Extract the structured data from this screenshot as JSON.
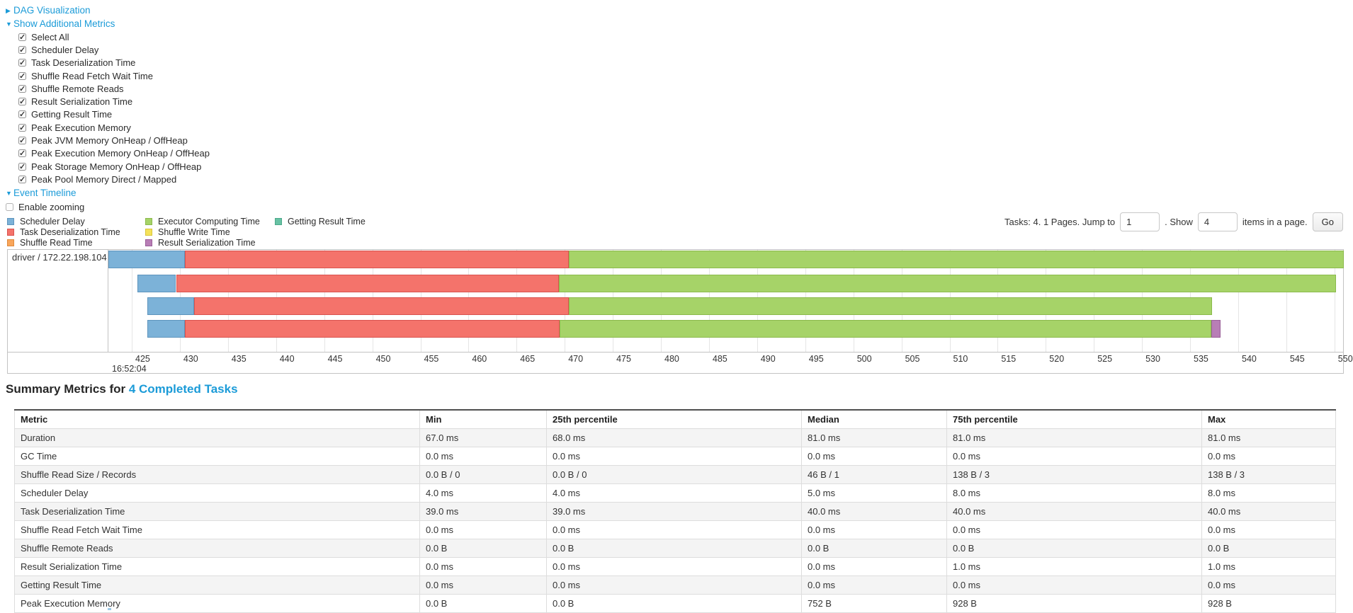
{
  "colors": {
    "link": "#1b9bd8",
    "scheduler_delay": {
      "fill": "#7CB2D8",
      "border": "#5E94BD"
    },
    "task_deserialization": {
      "fill": "#F4736B",
      "border": "#D9534F"
    },
    "shuffle_read": {
      "fill": "#F9A65B",
      "border": "#DE8A3E"
    },
    "executor_computing": {
      "fill": "#A6D368",
      "border": "#8BBA4C"
    },
    "shuffle_write": {
      "fill": "#F5E25A",
      "border": "#D8C53C"
    },
    "result_serialization": {
      "fill": "#B87EB6",
      "border": "#9A5F98"
    },
    "getting_result": {
      "fill": "#68C2A4",
      "border": "#4BA98A"
    }
  },
  "toggles": {
    "dag_visualization": "DAG Visualization",
    "show_additional_metrics": "Show Additional Metrics",
    "event_timeline": "Event Timeline",
    "enable_zooming": "Enable zooming"
  },
  "metric_checkboxes": [
    {
      "label": "Select All",
      "checked": true
    },
    {
      "label": "Scheduler Delay",
      "checked": true
    },
    {
      "label": "Task Deserialization Time",
      "checked": true
    },
    {
      "label": "Shuffle Read Fetch Wait Time",
      "checked": true
    },
    {
      "label": "Shuffle Remote Reads",
      "checked": true
    },
    {
      "label": "Result Serialization Time",
      "checked": true
    },
    {
      "label": "Getting Result Time",
      "checked": true
    },
    {
      "label": "Peak Execution Memory",
      "checked": true
    },
    {
      "label": "Peak JVM Memory OnHeap / OffHeap",
      "checked": true
    },
    {
      "label": "Peak Execution Memory OnHeap / OffHeap",
      "checked": true
    },
    {
      "label": "Peak Storage Memory OnHeap / OffHeap",
      "checked": true
    },
    {
      "label": "Peak Pool Memory Direct / Mapped",
      "checked": true
    }
  ],
  "legend_columns": [
    [
      {
        "label": "Scheduler Delay",
        "key": "scheduler_delay"
      },
      {
        "label": "Task Deserialization Time",
        "key": "task_deserialization"
      },
      {
        "label": "Shuffle Read Time",
        "key": "shuffle_read"
      }
    ],
    [
      {
        "label": "Executor Computing Time",
        "key": "executor_computing"
      },
      {
        "label": "Shuffle Write Time",
        "key": "shuffle_write"
      },
      {
        "label": "Result Serialization Time",
        "key": "result_serialization"
      }
    ],
    [
      {
        "label": "Getting Result Time",
        "key": "getting_result"
      }
    ]
  ],
  "pagination": {
    "tasks_text": "Tasks: 4. 1 Pages. Jump to",
    "jump_value": "1",
    "show_text": ". Show",
    "show_value": "4",
    "items_text": "items in a page.",
    "go_label": "Go"
  },
  "chart_data": {
    "type": "timeline",
    "group_label": "driver / 172.22.198.104",
    "x_start_label": "16:52:04",
    "axis": {
      "min": 422.57,
      "max": 550.9,
      "tick_step": 5,
      "ticks": [
        425,
        430,
        435,
        440,
        445,
        450,
        455,
        460,
        465,
        470,
        475,
        480,
        485,
        490,
        495,
        500,
        505,
        510,
        515,
        520,
        525,
        530,
        535,
        540,
        545,
        550
      ]
    },
    "tasks": [
      {
        "segments": [
          {
            "key": "scheduler_delay",
            "start": 422.6,
            "end": 430.5
          },
          {
            "key": "task_deserialization",
            "start": 430.5,
            "end": 470.4
          },
          {
            "key": "executor_computing",
            "start": 470.4,
            "end": 551.0
          }
        ]
      },
      {
        "segments": [
          {
            "key": "scheduler_delay",
            "start": 425.6,
            "end": 429.6
          },
          {
            "key": "task_deserialization",
            "start": 429.6,
            "end": 469.4
          },
          {
            "key": "executor_computing",
            "start": 469.4,
            "end": 550.2
          }
        ]
      },
      {
        "segments": [
          {
            "key": "scheduler_delay",
            "start": 426.6,
            "end": 431.5
          },
          {
            "key": "task_deserialization",
            "start": 431.5,
            "end": 470.4
          },
          {
            "key": "executor_computing",
            "start": 470.4,
            "end": 537.3
          }
        ]
      },
      {
        "segments": [
          {
            "key": "scheduler_delay",
            "start": 426.6,
            "end": 430.5
          },
          {
            "key": "task_deserialization",
            "start": 430.5,
            "end": 469.5
          },
          {
            "key": "executor_computing",
            "start": 469.5,
            "end": 537.2
          },
          {
            "key": "result_serialization",
            "start": 537.2,
            "end": 538.2
          }
        ]
      }
    ]
  },
  "summary": {
    "title_prefix": "Summary Metrics for ",
    "title_link": "4 Completed Tasks",
    "headers": [
      "Metric",
      "Min",
      "25th percentile",
      "Median",
      "75th percentile",
      "Max"
    ],
    "rows": [
      {
        "metric": "Duration",
        "values": [
          "67.0 ms",
          "68.0 ms",
          "81.0 ms",
          "81.0 ms",
          "81.0 ms"
        ]
      },
      {
        "metric": "GC Time",
        "values": [
          "0.0 ms",
          "0.0 ms",
          "0.0 ms",
          "0.0 ms",
          "0.0 ms"
        ]
      },
      {
        "metric": "Shuffle Read Size / Records",
        "values": [
          "0.0 B / 0",
          "0.0 B / 0",
          "46 B / 1",
          "138 B / 3",
          "138 B / 3"
        ]
      },
      {
        "metric": "Scheduler Delay",
        "values": [
          "4.0 ms",
          "4.0 ms",
          "5.0 ms",
          "8.0 ms",
          "8.0 ms"
        ]
      },
      {
        "metric": "Task Deserialization Time",
        "values": [
          "39.0 ms",
          "39.0 ms",
          "40.0 ms",
          "40.0 ms",
          "40.0 ms"
        ]
      },
      {
        "metric": "Shuffle Read Fetch Wait Time",
        "values": [
          "0.0 ms",
          "0.0 ms",
          "0.0 ms",
          "0.0 ms",
          "0.0 ms"
        ]
      },
      {
        "metric": "Shuffle Remote Reads",
        "values": [
          "0.0 B",
          "0.0 B",
          "0.0 B",
          "0.0 B",
          "0.0 B"
        ]
      },
      {
        "metric": "Result Serialization Time",
        "values": [
          "0.0 ms",
          "0.0 ms",
          "0.0 ms",
          "1.0 ms",
          "1.0 ms"
        ]
      },
      {
        "metric": "Getting Result Time",
        "values": [
          "0.0 ms",
          "0.0 ms",
          "0.0 ms",
          "0.0 ms",
          "0.0 ms"
        ]
      },
      {
        "metric": "Peak Execution Memory",
        "values": [
          "0.0 B",
          "0.0 B",
          "752 B",
          "928 B",
          "928 B"
        ]
      }
    ]
  }
}
